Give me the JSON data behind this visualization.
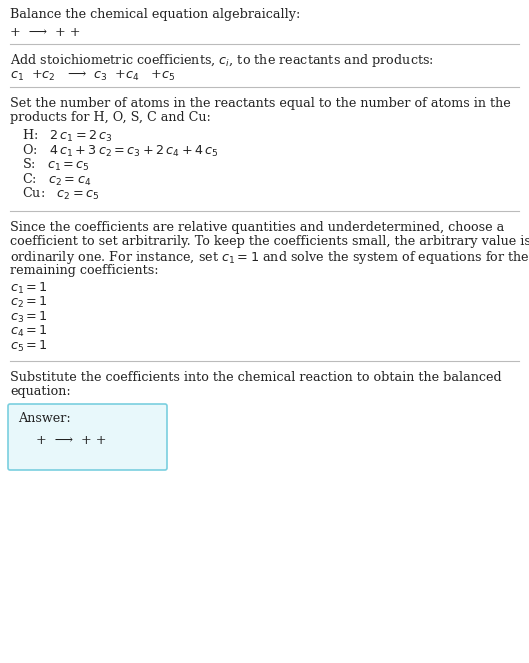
{
  "title": "Balance the chemical equation algebraically:",
  "line1": "+  ⟶  + +",
  "section1_header": "Add stoichiometric coefficients, $c_i$, to the reactants and products:",
  "section1_eq": "$c_1$  +$c_2$   ⟶  $c_3$  +$c_4$   +$c_5$",
  "section2_header_lines": [
    "Set the number of atoms in the reactants equal to the number of atoms in the",
    "products for H, O, S, C and Cu:"
  ],
  "section2_lines": [
    "  H:   $2\\,c_1 = 2\\,c_3$",
    "  O:   $4\\,c_1 + 3\\,c_2 = c_3 + 2\\,c_4 + 4\\,c_5$",
    "  S:   $c_1 = c_5$",
    "  C:   $c_2 = c_4$",
    "  Cu:   $c_2 = c_5$"
  ],
  "section3_header_lines": [
    "Since the coefficients are relative quantities and underdetermined, choose a",
    "coefficient to set arbitrarily. To keep the coefficients small, the arbitrary value is",
    "ordinarily one. For instance, set $c_1 = 1$ and solve the system of equations for the",
    "remaining coefficients:"
  ],
  "section3_lines": [
    "$c_1 = 1$",
    "$c_2 = 1$",
    "$c_3 = 1$",
    "$c_4 = 1$",
    "$c_5 = 1$"
  ],
  "section4_header_lines": [
    "Substitute the coefficients into the chemical reaction to obtain the balanced",
    "equation:"
  ],
  "answer_label": "Answer:",
  "answer_eq": "  +  ⟶  + +",
  "bg_color": "#ffffff",
  "text_color": "#222222",
  "line_color": "#bbbbbb",
  "answer_box_face": "#e8f8fb",
  "answer_box_edge": "#7acfdf",
  "fig_width": 5.29,
  "fig_height": 6.63,
  "dpi": 100,
  "fs": 9.2,
  "fs_eq": 9.2
}
